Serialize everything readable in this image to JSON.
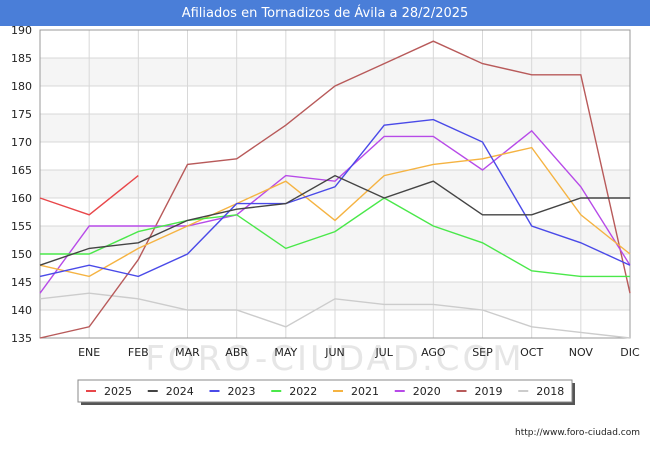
{
  "title": "Afiliados en Tornadizos de Ávila a 28/2/2025",
  "footer_url": "http://www.foro-ciudad.com",
  "watermark": "FORO-CIUDAD.COM",
  "chart_data": {
    "type": "line",
    "title": "Afiliados en Tornadizos de Ávila a 28/2/2025",
    "xlabel": "",
    "ylabel": "",
    "ylim": [
      135,
      190
    ],
    "yticks": [
      135,
      140,
      145,
      150,
      155,
      160,
      165,
      170,
      175,
      180,
      185,
      190
    ],
    "categories": [
      "",
      "ENE",
      "FEB",
      "MAR",
      "ABR",
      "MAY",
      "JUN",
      "JUL",
      "AGO",
      "SEP",
      "OCT",
      "NOV",
      "DIC"
    ],
    "grid": true,
    "legend_position": "bottom",
    "series": [
      {
        "name": "2025",
        "color": "#e8474a",
        "values": [
          160,
          157,
          164,
          null,
          null,
          null,
          null,
          null,
          null,
          null,
          null,
          null,
          null
        ]
      },
      {
        "name": "2024",
        "color": "#444444",
        "values": [
          148,
          151,
          152,
          156,
          158,
          159,
          164,
          160,
          163,
          157,
          157,
          160,
          160
        ]
      },
      {
        "name": "2023",
        "color": "#4a4ae8",
        "values": [
          146,
          148,
          146,
          150,
          159,
          159,
          162,
          173,
          174,
          170,
          155,
          152,
          148
        ]
      },
      {
        "name": "2022",
        "color": "#4ae84a",
        "values": [
          150,
          150,
          154,
          156,
          157,
          151,
          154,
          160,
          155,
          152,
          147,
          146,
          146
        ]
      },
      {
        "name": "2021",
        "color": "#f5b342",
        "values": [
          148,
          146,
          151,
          155,
          159,
          163,
          156,
          164,
          166,
          167,
          169,
          157,
          150
        ]
      },
      {
        "name": "2020",
        "color": "#b74ae8",
        "values": [
          143,
          155,
          155,
          155,
          157,
          164,
          163,
          171,
          171,
          165,
          172,
          162,
          148
        ]
      },
      {
        "name": "2019",
        "color": "#b85a5a",
        "values": [
          135,
          137,
          149,
          166,
          167,
          173,
          180,
          184,
          188,
          184,
          182,
          182,
          143
        ]
      },
      {
        "name": "2018",
        "color": "#cccccc",
        "values": [
          142,
          143,
          142,
          140,
          140,
          137,
          142,
          141,
          141,
          140,
          137,
          136,
          135
        ]
      }
    ]
  }
}
